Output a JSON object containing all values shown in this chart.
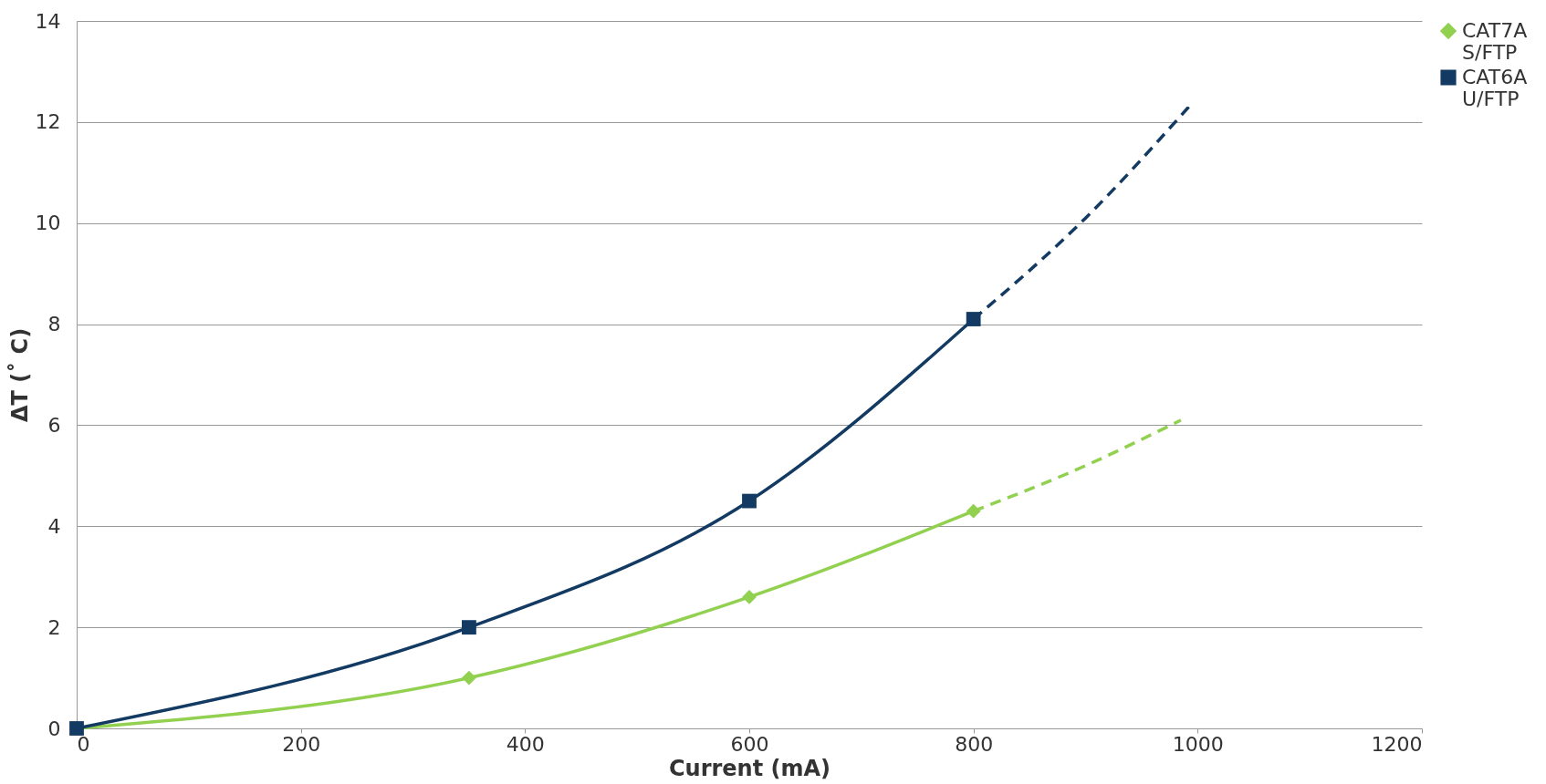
{
  "chart_data": {
    "type": "line",
    "xlabel": "Current (mA)",
    "ylabel": "ΔT (˚ C)",
    "xlim": [
      0,
      1200
    ],
    "xticks": [
      0,
      200,
      400,
      600,
      800,
      1000,
      1200
    ],
    "ylim": [
      0,
      14
    ],
    "yticks": [
      0,
      2,
      4,
      6,
      8,
      10,
      12,
      14
    ],
    "grid": "y",
    "legend": "right",
    "series": [
      {
        "name": "CAT7A S/FTP",
        "color": "#92d050",
        "x": [
          0,
          350,
          600,
          800
        ],
        "values": [
          0,
          1,
          2.6,
          4.3
        ],
        "marker": "diamond",
        "line_style": "solid"
      },
      {
        "name": "CAT6A U/FTP",
        "color": "#123a63",
        "x": [
          0,
          350,
          600,
          800
        ],
        "values": [
          0,
          2,
          4.5,
          8.1
        ],
        "marker": "square",
        "line_style": "solid"
      },
      {
        "color": "#92d050",
        "x": [
          800,
          900,
          985
        ],
        "values": [
          4.3,
          5.2,
          6.1
        ],
        "marker": "none",
        "line_style": "dashed"
      },
      {
        "color": "#123a63",
        "x": [
          800,
          900,
          992
        ],
        "values": [
          8.1,
          10.1,
          12.3
        ],
        "marker": "none",
        "line_style": "dashed"
      }
    ]
  }
}
